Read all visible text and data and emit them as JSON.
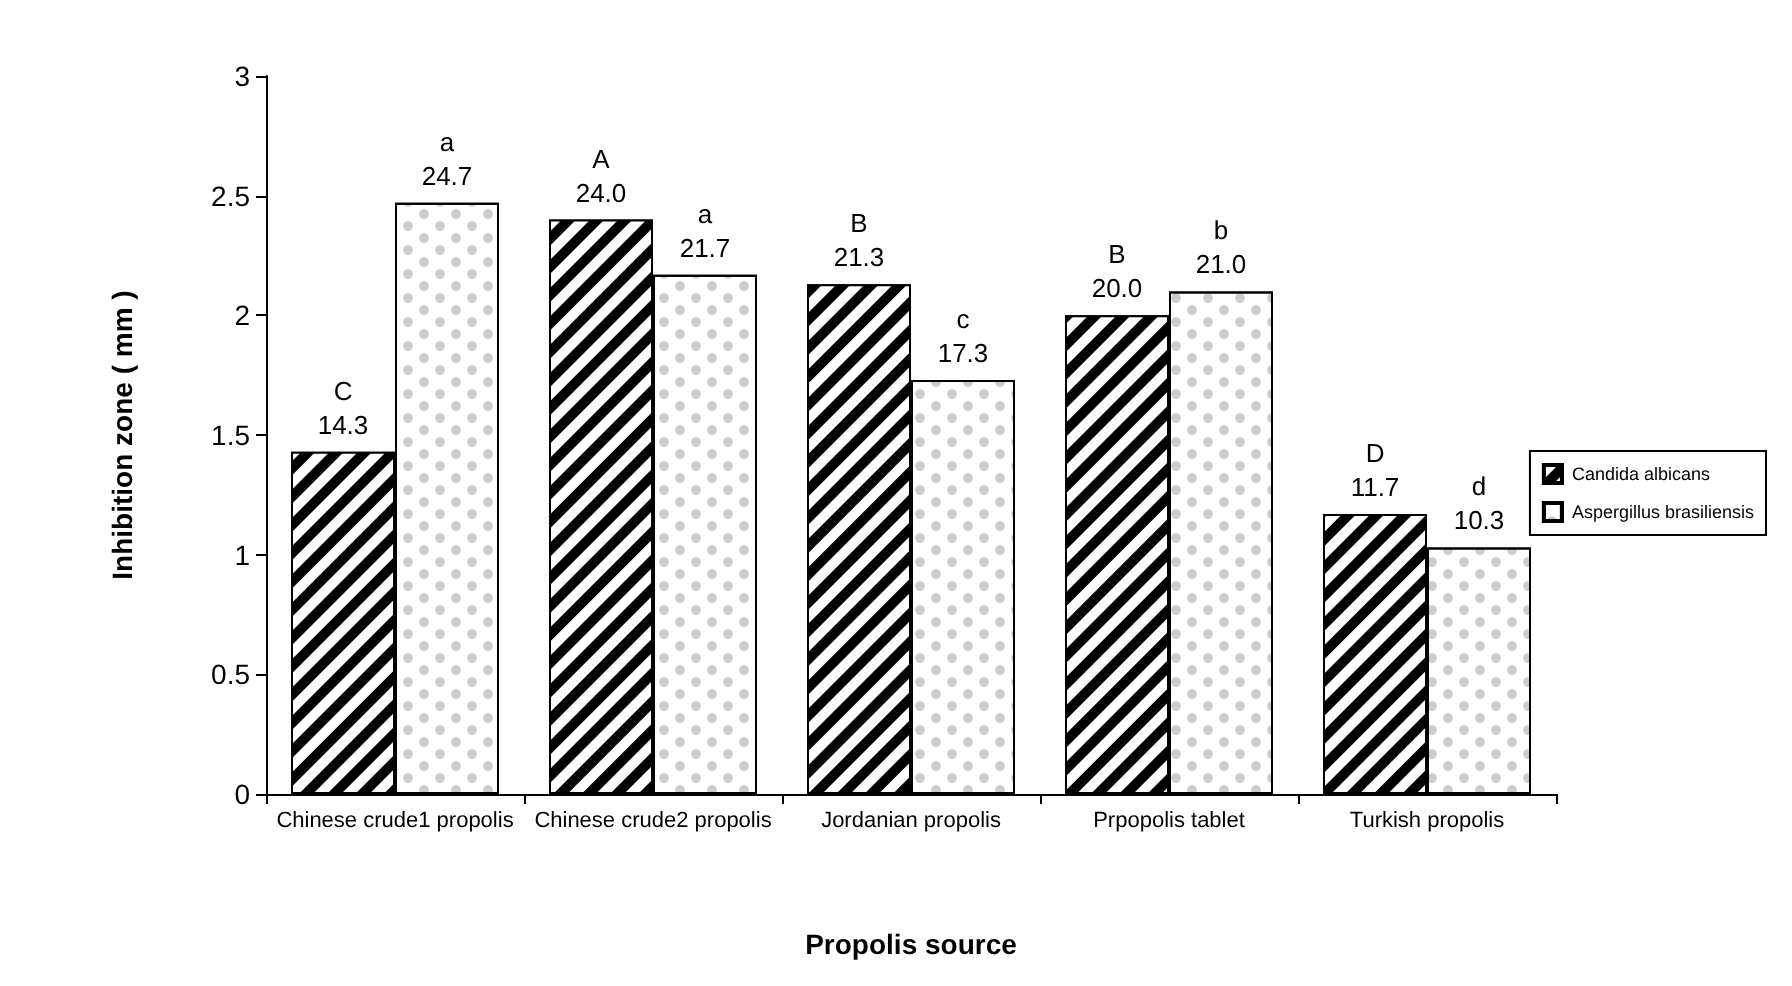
{
  "chart_data": {
    "type": "bar",
    "xlabel": "Propolis source",
    "ylabel": "Inhibition zone ( mm )",
    "categories": [
      "Chinese crude1 propolis",
      "Chinese crude2 propolis",
      "Jordanian propolis",
      "Prpopolis tablet",
      "Turkish propolis"
    ],
    "series": [
      {
        "name": "Candida albicans",
        "color": "#000000",
        "values": [
          1.43,
          2.4,
          2.13,
          2.0,
          1.17
        ],
        "value_labels": [
          "C\n14.3",
          "A\n24.0",
          "B\n21.3",
          "B\n20.0",
          "D\n11.7"
        ]
      },
      {
        "name": "Aspergillus brasiliensis",
        "color": "#ffffff",
        "values": [
          2.47,
          2.17,
          1.73,
          2.1,
          1.03
        ],
        "value_labels": [
          "a\n24.7",
          "a\n21.7",
          "c\n17.3",
          "b\n21.0",
          "d\n10.3"
        ]
      }
    ],
    "ylim": [
      0,
      3
    ],
    "yticks": [
      0,
      0.5,
      1,
      1.5,
      2,
      2.5,
      3
    ],
    "grid": false,
    "legend": "right"
  }
}
